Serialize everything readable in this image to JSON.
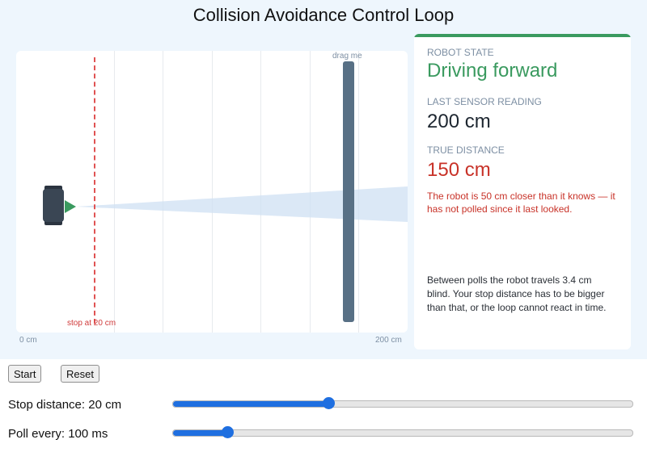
{
  "title": "Collision Avoidance Control Loop",
  "track": {
    "stop_label": "stop at 20 cm",
    "drag_label": "drag me",
    "axis_start": "0 cm",
    "axis_end": "200 cm"
  },
  "panel": {
    "robot_state_label": "ROBOT STATE",
    "robot_state_value": "Driving forward",
    "last_reading_label": "LAST SENSOR READING",
    "last_reading_value": "200 cm",
    "true_distance_label": "TRUE DISTANCE",
    "true_distance_value": "150 cm",
    "warning": "The robot is 50 cm closer than it knows — it has not polled since it last looked.",
    "note": "Between polls the robot travels 3.4 cm blind. Your stop distance has to be bigger than that, or the loop cannot react in time."
  },
  "controls": {
    "start_label": "Start",
    "reset_label": "Reset",
    "stop_distance_label": "Stop distance: 20 cm",
    "stop_distance_fraction": 0.34,
    "poll_label": "Poll every: 100 ms",
    "poll_fraction": 0.12
  },
  "colors": {
    "state_green": "#3a9a5f",
    "warning_red": "#c83228",
    "accent_blue": "#1f6fe0",
    "wall": "#587085"
  }
}
